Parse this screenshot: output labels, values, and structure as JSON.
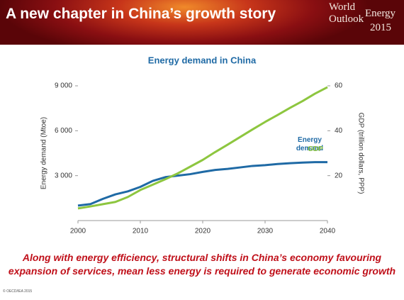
{
  "header": {
    "title": "A new chapter in China’s growth story",
    "logo": [
      "World",
      "Outlook",
      "Energy",
      "2015"
    ]
  },
  "chart_data": {
    "type": "line",
    "title": "Energy demand in China",
    "y_label": "Energy demand (Mtoe)",
    "y2_label": "GDP (trillion dollars, PPP)",
    "x": [
      2000,
      2002,
      2004,
      2006,
      2008,
      2010,
      2012,
      2014,
      2016,
      2018,
      2020,
      2022,
      2024,
      2026,
      2028,
      2030,
      2032,
      2034,
      2036,
      2038,
      2040
    ],
    "xlim": [
      2000,
      2040
    ],
    "xticks": [
      2000,
      2010,
      2020,
      2030,
      2040
    ],
    "ylim": [
      0,
      9000
    ],
    "yticks": [
      {
        "value": 3000,
        "label": "3 000"
      },
      {
        "value": 6000,
        "label": "6 000"
      },
      {
        "value": 9000,
        "label": "9 000"
      }
    ],
    "y2lim": [
      0,
      60
    ],
    "y2ticks": [
      20,
      40,
      60
    ],
    "series": [
      {
        "name": "Energy demand",
        "color": "#1f6aa5",
        "values": [
          1000,
          1100,
          1450,
          1750,
          1950,
          2250,
          2650,
          2900,
          3000,
          3100,
          3250,
          3380,
          3450,
          3550,
          3650,
          3700,
          3780,
          3830,
          3870,
          3900,
          3900
        ]
      },
      {
        "name": "GDP",
        "color": "#8dc63f",
        "axis": "y2",
        "values": [
          5.4,
          6.3,
          7.3,
          8.3,
          10.5,
          13.6,
          16.0,
          18.4,
          21.0,
          24.0,
          27.0,
          30.5,
          33.8,
          37.2,
          40.6,
          43.9,
          47.0,
          50.2,
          53.2,
          56.5,
          59.4
        ]
      }
    ]
  },
  "caption": "Along with energy efficiency, structural shifts in China’s economy favouring expansion of services, mean less energy is required to generate economic growth",
  "footer": "© OECD/IEA 2015"
}
